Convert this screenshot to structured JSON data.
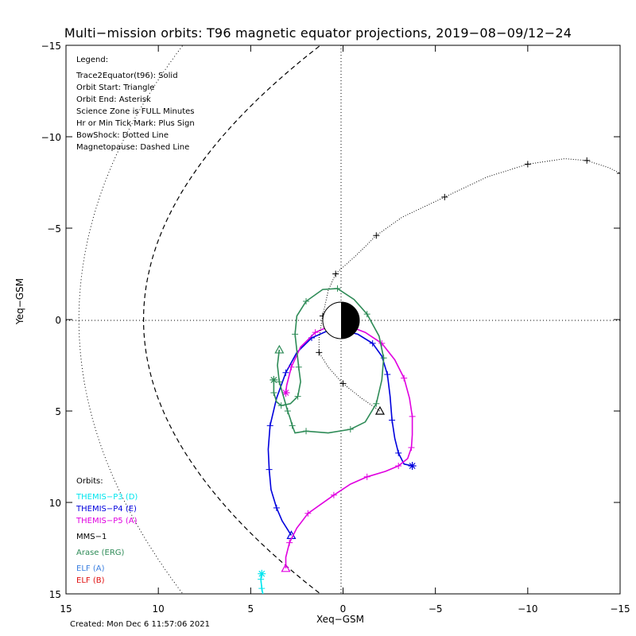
{
  "chart_data": {
    "type": "line",
    "title": "Multi−mission orbits: T96 magnetic equator projections, 2019−08−09/12−24",
    "xlabel": "Xeq−GSM",
    "ylabel": "Yeq−GSM",
    "xlim": [
      15,
      -15
    ],
    "ylim": [
      15,
      -15
    ],
    "xticks": [
      "15",
      "10",
      "5",
      "0",
      "−5",
      "−10",
      "−15"
    ],
    "yticks": [
      "−15",
      "−10",
      "−5",
      "0",
      "5",
      "10",
      "15"
    ],
    "legend_title": "Legend:",
    "legend_items": [
      "Trace2Equator(t96): Solid",
      "Orbit Start: Triangle",
      "Orbit End: Asterisk",
      "Science Zone is FULL Minutes",
      "Hr or Min Tick Mark: Plus Sign",
      "BowShock: Dotted Line",
      "Magnetopause: Dashed Line"
    ],
    "orbits_title": "Orbits:",
    "created_label": "Created: Mon Dec  6 11:57:06 2021",
    "colors": {
      "themis_p3": "#00e5ee",
      "themis_p4": "#0000dd",
      "themis_p5": "#e000e0",
      "mms1": "#000000",
      "arase": "#2e8b57",
      "elf_a": "#3a7fe0",
      "elf_b": "#e01010"
    },
    "series": [
      {
        "name": "THEMIS−P3 (D)",
        "color": "#00e5ee",
        "points": [
          [
            3.0,
            15.8
          ],
          [
            3.6,
            15.6
          ],
          [
            4.0,
            15.45
          ],
          [
            4.3,
            15.2
          ],
          [
            4.4,
            14.7
          ],
          [
            4.45,
            14.2
          ],
          [
            4.4,
            13.9
          ]
        ]
      },
      {
        "name": "THEMIS−P4 (E)",
        "color": "#0000dd",
        "points": [
          [
            2.8,
            11.8
          ],
          [
            3.3,
            11.0
          ],
          [
            3.6,
            10.3
          ],
          [
            3.9,
            9.3
          ],
          [
            4.0,
            8.2
          ],
          [
            4.05,
            7.1
          ],
          [
            3.95,
            5.8
          ],
          [
            3.6,
            4.3
          ],
          [
            3.1,
            2.9
          ],
          [
            2.5,
            1.8
          ],
          [
            1.7,
            1.0
          ],
          [
            0.8,
            0.6
          ],
          [
            0.0,
            0.6
          ],
          [
            -0.8,
            0.8
          ],
          [
            -1.6,
            1.3
          ],
          [
            -2.1,
            2.0
          ],
          [
            -2.4,
            3.0
          ],
          [
            -2.55,
            4.2
          ],
          [
            -2.65,
            5.5
          ],
          [
            -2.8,
            6.5
          ],
          [
            -3.0,
            7.3
          ],
          [
            -3.3,
            7.9
          ],
          [
            -3.75,
            8.0
          ]
        ]
      },
      {
        "name": "THEMIS−P5 (A)",
        "color": "#e000e0",
        "points": [
          [
            3.1,
            13.6
          ],
          [
            3.1,
            13.0
          ],
          [
            2.9,
            12.2
          ],
          [
            2.5,
            11.4
          ],
          [
            1.9,
            10.6
          ],
          [
            1.2,
            10.1
          ],
          [
            0.5,
            9.6
          ],
          [
            -0.4,
            9.0
          ],
          [
            -1.3,
            8.6
          ],
          [
            -2.3,
            8.3
          ],
          [
            -3.0,
            8.0
          ],
          [
            -3.5,
            7.6
          ],
          [
            -3.7,
            7.0
          ],
          [
            -3.75,
            6.3
          ],
          [
            -3.75,
            5.3
          ],
          [
            -3.6,
            4.3
          ],
          [
            -3.3,
            3.2
          ],
          [
            -2.8,
            2.2
          ],
          [
            -2.1,
            1.3
          ],
          [
            -1.2,
            0.7
          ],
          [
            -0.3,
            0.35
          ],
          [
            0.6,
            0.3
          ],
          [
            1.5,
            0.7
          ],
          [
            2.3,
            1.5
          ],
          [
            2.8,
            2.6
          ],
          [
            3.05,
            3.6
          ],
          [
            3.1,
            4.0
          ]
        ]
      },
      {
        "name": "MMS−1",
        "color": "#000000",
        "points": [
          [
            -2.0,
            5.0
          ],
          [
            -1.0,
            4.3
          ],
          [
            0.0,
            3.5
          ],
          [
            0.8,
            2.6
          ],
          [
            1.3,
            1.8
          ],
          [
            1.3,
            1.0
          ],
          [
            1.1,
            -0.2
          ],
          [
            0.8,
            -1.6
          ],
          [
            0.4,
            -2.5
          ],
          [
            -0.7,
            -3.5
          ],
          [
            -1.8,
            -4.6
          ],
          [
            -3.2,
            -5.6
          ],
          [
            -5.5,
            -6.7
          ],
          [
            -7.8,
            -7.8
          ],
          [
            -10.0,
            -8.5
          ],
          [
            -12.0,
            -8.8
          ],
          [
            -13.2,
            -8.7
          ],
          [
            -14.4,
            -8.3
          ],
          [
            -15.0,
            -8.0
          ],
          [
            -15.6,
            -7.7
          ]
        ]
      },
      {
        "name": "Arase (ERG)",
        "color": "#2e8b57",
        "points": [
          [
            3.45,
            1.65
          ],
          [
            3.55,
            2.5
          ],
          [
            3.45,
            3.4
          ],
          [
            3.2,
            4.3
          ],
          [
            3.0,
            5.0
          ],
          [
            2.85,
            5.45
          ],
          [
            2.75,
            5.8
          ],
          [
            2.6,
            6.2
          ],
          [
            2.0,
            6.1
          ],
          [
            0.8,
            6.2
          ],
          [
            -0.4,
            6.0
          ],
          [
            -1.2,
            5.6
          ],
          [
            -1.8,
            4.6
          ],
          [
            -2.1,
            3.3
          ],
          [
            -2.2,
            2.1
          ],
          [
            -1.95,
            0.9
          ],
          [
            -1.3,
            -0.3
          ],
          [
            -0.6,
            -1.1
          ],
          [
            0.3,
            -1.7
          ],
          [
            1.1,
            -1.65
          ],
          [
            2.0,
            -1.0
          ],
          [
            2.5,
            -0.2
          ],
          [
            2.6,
            0.8
          ],
          [
            2.5,
            1.7
          ],
          [
            2.4,
            2.6
          ],
          [
            2.3,
            3.4
          ],
          [
            2.45,
            4.2
          ],
          [
            2.85,
            4.6
          ],
          [
            3.35,
            4.7
          ],
          [
            3.6,
            4.5
          ],
          [
            3.75,
            4.0
          ],
          [
            3.75,
            3.3
          ]
        ]
      },
      {
        "name": "ELF (A)",
        "color": "#3a7fe0",
        "points": []
      },
      {
        "name": "ELF (B)",
        "color": "#e01010",
        "points": []
      }
    ],
    "bowshock": "dotted",
    "magnetopause": "dashed",
    "grid": "dotted zero lines",
    "legend_placement": "top-left"
  }
}
